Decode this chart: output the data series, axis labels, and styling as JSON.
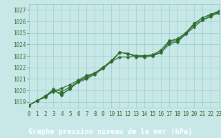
{
  "x": [
    0,
    1,
    2,
    3,
    4,
    5,
    6,
    7,
    8,
    9,
    10,
    11,
    12,
    13,
    14,
    15,
    16,
    17,
    18,
    19,
    20,
    21,
    22,
    23
  ],
  "series1": [
    1018.7,
    1019.1,
    1019.4,
    1020.0,
    1019.6,
    1020.2,
    1020.7,
    1021.0,
    1021.4,
    1021.9,
    1022.5,
    1023.3,
    1023.2,
    1022.9,
    1022.9,
    1023.0,
    1023.3,
    1024.2,
    1024.2,
    1024.9,
    1025.7,
    1026.1,
    1026.5,
    1026.7
  ],
  "series2": [
    1018.7,
    1019.1,
    1019.5,
    1020.1,
    1019.9,
    1020.3,
    1020.8,
    1021.1,
    1021.5,
    1022.0,
    1022.5,
    1023.3,
    1023.2,
    1023.0,
    1023.0,
    1023.0,
    1023.5,
    1024.3,
    1024.4,
    1025.0,
    1025.8,
    1026.3,
    1026.6,
    1026.8
  ],
  "series3": [
    1018.7,
    1019.1,
    1019.5,
    1019.9,
    1020.2,
    1020.5,
    1020.9,
    1021.3,
    1021.5,
    1022.0,
    1022.5,
    1022.9,
    1022.9,
    1023.0,
    1023.0,
    1023.0,
    1023.3,
    1024.0,
    1024.3,
    1024.9,
    1025.5,
    1026.1,
    1026.4,
    1026.8
  ],
  "series4": [
    1018.7,
    1019.1,
    1019.5,
    1020.0,
    1019.7,
    1020.1,
    1020.8,
    1021.2,
    1021.5,
    1022.0,
    1022.6,
    1023.3,
    1023.2,
    1023.0,
    1023.0,
    1023.1,
    1023.5,
    1024.3,
    1024.5,
    1025.0,
    1025.8,
    1026.3,
    1026.6,
    1026.9
  ],
  "line_color": "#2d6a2d",
  "marker_color": "#2d6a2d",
  "bg_color": "#c8e8e8",
  "plot_bg_color": "#c8e8e8",
  "grid_color": "#99cccc",
  "axis_label_color": "#2d6a2d",
  "bottom_bar_color": "#1a5c1a",
  "title": "Graphe pression niveau de la mer (hPa)",
  "xlim": [
    0,
    23
  ],
  "ylim": [
    1018.5,
    1027.5
  ],
  "yticks": [
    1019,
    1020,
    1021,
    1022,
    1023,
    1024,
    1025,
    1026,
    1027
  ],
  "xticks": [
    0,
    1,
    2,
    3,
    4,
    5,
    6,
    7,
    8,
    9,
    10,
    11,
    12,
    13,
    14,
    15,
    16,
    17,
    18,
    19,
    20,
    21,
    22,
    23
  ],
  "tick_fontsize": 5.5,
  "title_fontsize": 7.5,
  "marker_size": 2.5,
  "linewidth": 0.8
}
